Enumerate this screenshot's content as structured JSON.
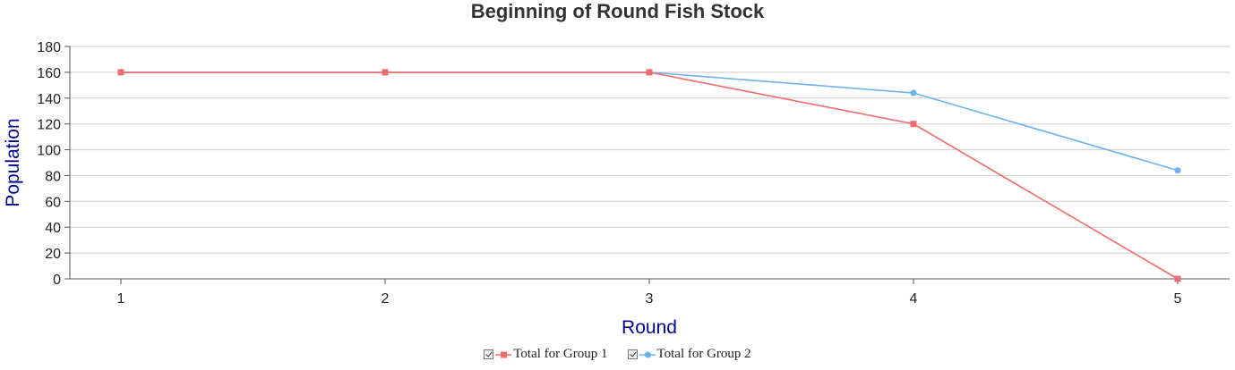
{
  "chart_data": {
    "type": "line",
    "title": "Beginning of Round Fish Stock",
    "xlabel": "Round",
    "ylabel": "Population",
    "x": [
      1,
      2,
      3,
      4,
      5
    ],
    "ylim": [
      0,
      180
    ],
    "yticks": [
      0,
      20,
      40,
      60,
      80,
      100,
      120,
      140,
      160,
      180
    ],
    "grid": true,
    "legend_position": "bottom",
    "series": [
      {
        "name": "Total for Group 1",
        "values": [
          160,
          160,
          160,
          120,
          0
        ],
        "color": "#f06b6b",
        "marker": "square"
      },
      {
        "name": "Total for Group 2",
        "values": [
          160,
          160,
          160,
          144,
          84
        ],
        "color": "#6cb4f0",
        "marker": "circle"
      }
    ]
  }
}
